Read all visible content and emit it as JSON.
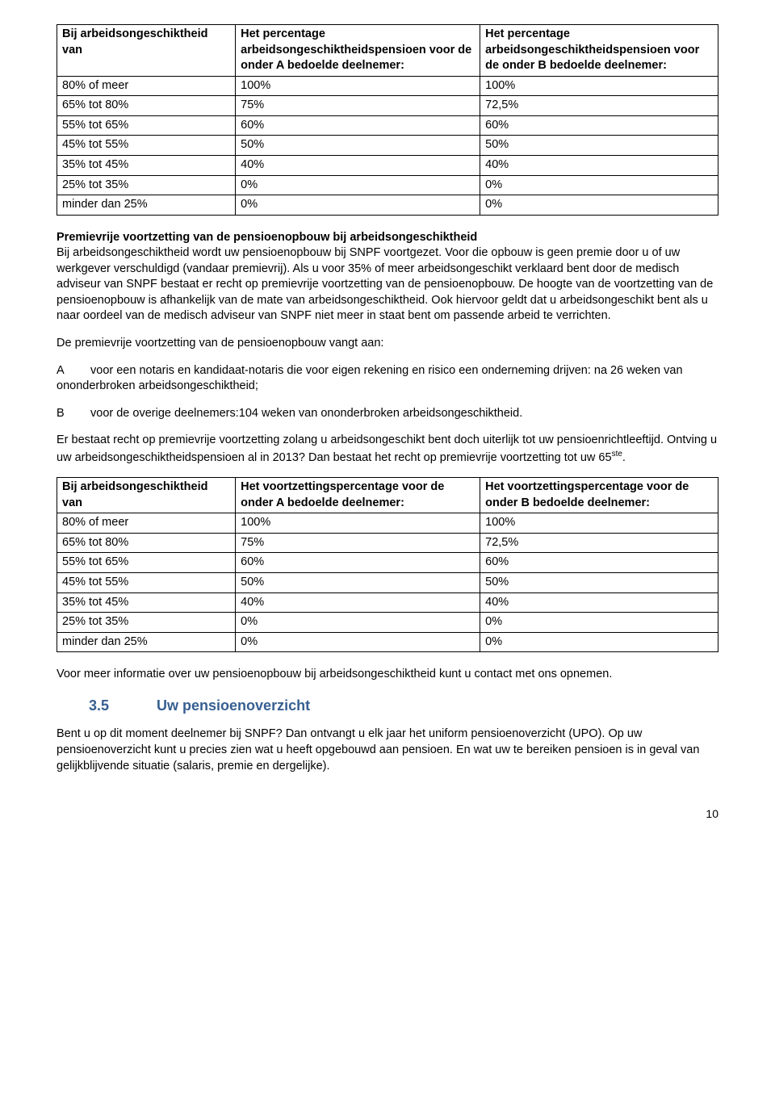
{
  "table1": {
    "header": {
      "c1": "Bij arbeidsongeschiktheid van",
      "c2": "Het percentage arbeidsongeschiktheidspensioen voor de onder A bedoelde deelnemer:",
      "c3": "Het percentage arbeidsongeschiktheidspensioen voor de onder B bedoelde deelnemer:"
    },
    "rows": [
      {
        "c1": "80% of meer",
        "c2": "100%",
        "c3": "100%"
      },
      {
        "c1": "65% tot 80%",
        "c2": "75%",
        "c3": "72,5%"
      },
      {
        "c1": "55% tot 65%",
        "c2": "60%",
        "c3": "60%"
      },
      {
        "c1": "45% tot 55%",
        "c2": "50%",
        "c3": "50%"
      },
      {
        "c1": "35% tot 45%",
        "c2": "40%",
        "c3": "40%"
      },
      {
        "c1": "25% tot 35%",
        "c2": "0%",
        "c3": "0%"
      },
      {
        "c1": "minder dan 25%",
        "c2": "0%",
        "c3": "0%"
      }
    ]
  },
  "h1": "Premievrije voortzetting van de pensioenopbouw bij arbeidsongeschiktheid",
  "p1": "Bij arbeidsongeschiktheid wordt uw pensioenopbouw bij SNPF voortgezet. Voor die opbouw is geen premie door u of uw werkgever verschuldigd (vandaar premievrij). Als u voor 35% of meer arbeidsongeschikt verklaard bent door de medisch adviseur van SNPF bestaat er recht op premievrije voortzetting van de pensioenopbouw. De hoogte van de voortzetting van de pensioenopbouw is afhankelijk van de mate van arbeidsongeschiktheid. Ook hiervoor geldt dat u arbeidsongeschikt bent als u naar oordeel van de medisch adviseur van SNPF niet meer in staat bent om passende arbeid te verrichten.",
  "p2": "De premievrije voortzetting van de pensioenopbouw vangt aan:",
  "p3_label": "A",
  "p3": "voor een notaris en kandidaat-notaris die voor eigen rekening en risico een onderneming drijven: na 26 weken van ononderbroken arbeidsongeschiktheid;",
  "p4_label": "B",
  "p4": "voor de overige deelnemers:104 weken van ononderbroken arbeidsongeschiktheid.",
  "p5a": "Er bestaat recht op premievrije voortzetting zolang u arbeidsongeschikt bent doch uiterlijk tot uw pensioenrichtleeftijd. Ontving u uw arbeidsongeschiktheidspensioen al in 2013? Dan bestaat het recht op premievrije voortzetting tot uw 65",
  "p5b": "ste",
  "p5c": ".",
  "table2": {
    "header": {
      "c1": "Bij arbeidsongeschiktheid van",
      "c2": "Het voortzettingspercentage voor de onder A bedoelde deelnemer:",
      "c3": "Het voortzettingspercentage voor de onder B bedoelde deelnemer:"
    },
    "rows": [
      {
        "c1": "80% of meer",
        "c2": "100%",
        "c3": "100%"
      },
      {
        "c1": "65% tot 80%",
        "c2": "75%",
        "c3": "72,5%"
      },
      {
        "c1": "55% tot 65%",
        "c2": "60%",
        "c3": "60%"
      },
      {
        "c1": "45% tot 55%",
        "c2": "50%",
        "c3": "50%"
      },
      {
        "c1": "35% tot 45%",
        "c2": "40%",
        "c3": "40%"
      },
      {
        "c1": "25% tot 35%",
        "c2": "0%",
        "c3": "0%"
      },
      {
        "c1": "minder dan 25%",
        "c2": "0%",
        "c3": "0%"
      }
    ]
  },
  "p6": "Voor meer informatie over uw pensioenopbouw bij arbeidsongeschiktheid kunt u contact met ons opnemen.",
  "section": {
    "num": "3.5",
    "title": "Uw pensioenoverzicht"
  },
  "p7": "Bent u op dit moment deelnemer bij SNPF? Dan ontvangt u elk jaar het uniform pensioenoverzicht (UPO). Op uw pensioenoverzicht kunt u precies zien wat u heeft opgebouwd aan pensioen. En wat uw te bereiken pensioen is in geval van gelijkblijvende situatie (salaris, premie en dergelijke).",
  "page_number": "10",
  "colors": {
    "heading": "#365f91",
    "text": "#000000",
    "border": "#000000",
    "background": "#ffffff"
  }
}
